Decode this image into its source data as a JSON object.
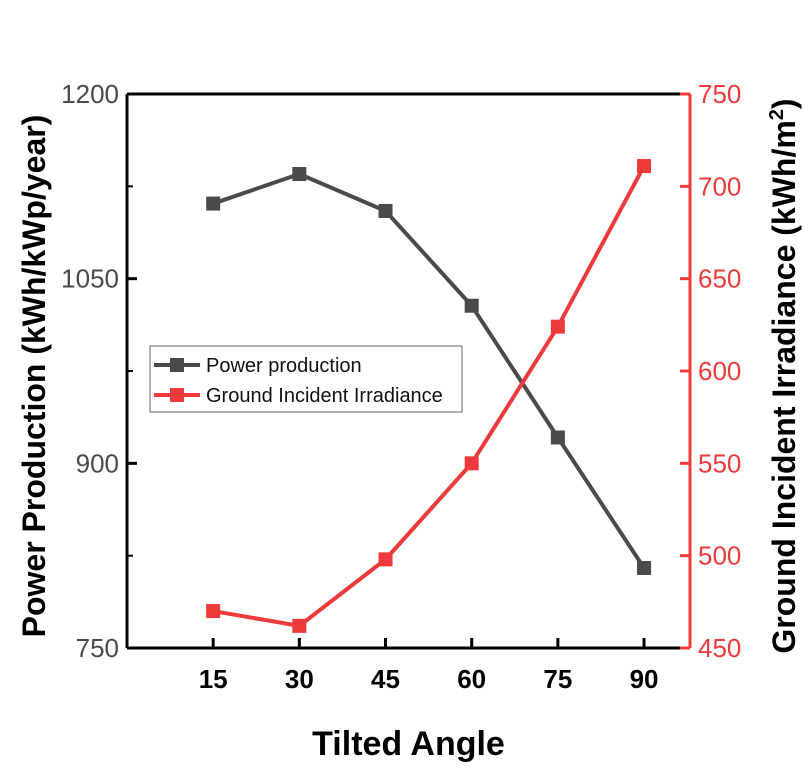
{
  "chart_data": {
    "type": "line",
    "x": [
      15,
      30,
      45,
      60,
      75,
      90
    ],
    "xlabel": "Tilted Angle",
    "xticks": [
      "15",
      "30",
      "45",
      "60",
      "75",
      "90"
    ],
    "xlim": [
      0,
      98
    ],
    "y_left": {
      "label": "Power Production (kWh/kWp/year)",
      "lim": [
        750,
        1200
      ],
      "ticks": [
        "750",
        "900",
        "1050",
        "1200"
      ],
      "color": "#4a4a4a"
    },
    "y_right": {
      "label_main": "Ground Incident Irradiance (kWh/m",
      "label_sup": "2",
      "label_close": ")",
      "lim": [
        450,
        750
      ],
      "ticks": [
        "450",
        "500",
        "550",
        "600",
        "650",
        "700",
        "750"
      ],
      "color": "#ee3a3a"
    },
    "series": [
      {
        "name": "Power production",
        "axis": "left",
        "color": "#4a4a4a",
        "values": [
          1111,
          1135,
          1105,
          1028,
          921,
          815
        ]
      },
      {
        "name": "Ground Incident Irradiance",
        "axis": "right",
        "color": "#ee3a3a",
        "values": [
          470,
          462,
          498,
          550,
          624,
          711
        ]
      }
    ],
    "legend_position": "center-left",
    "grid": false
  }
}
